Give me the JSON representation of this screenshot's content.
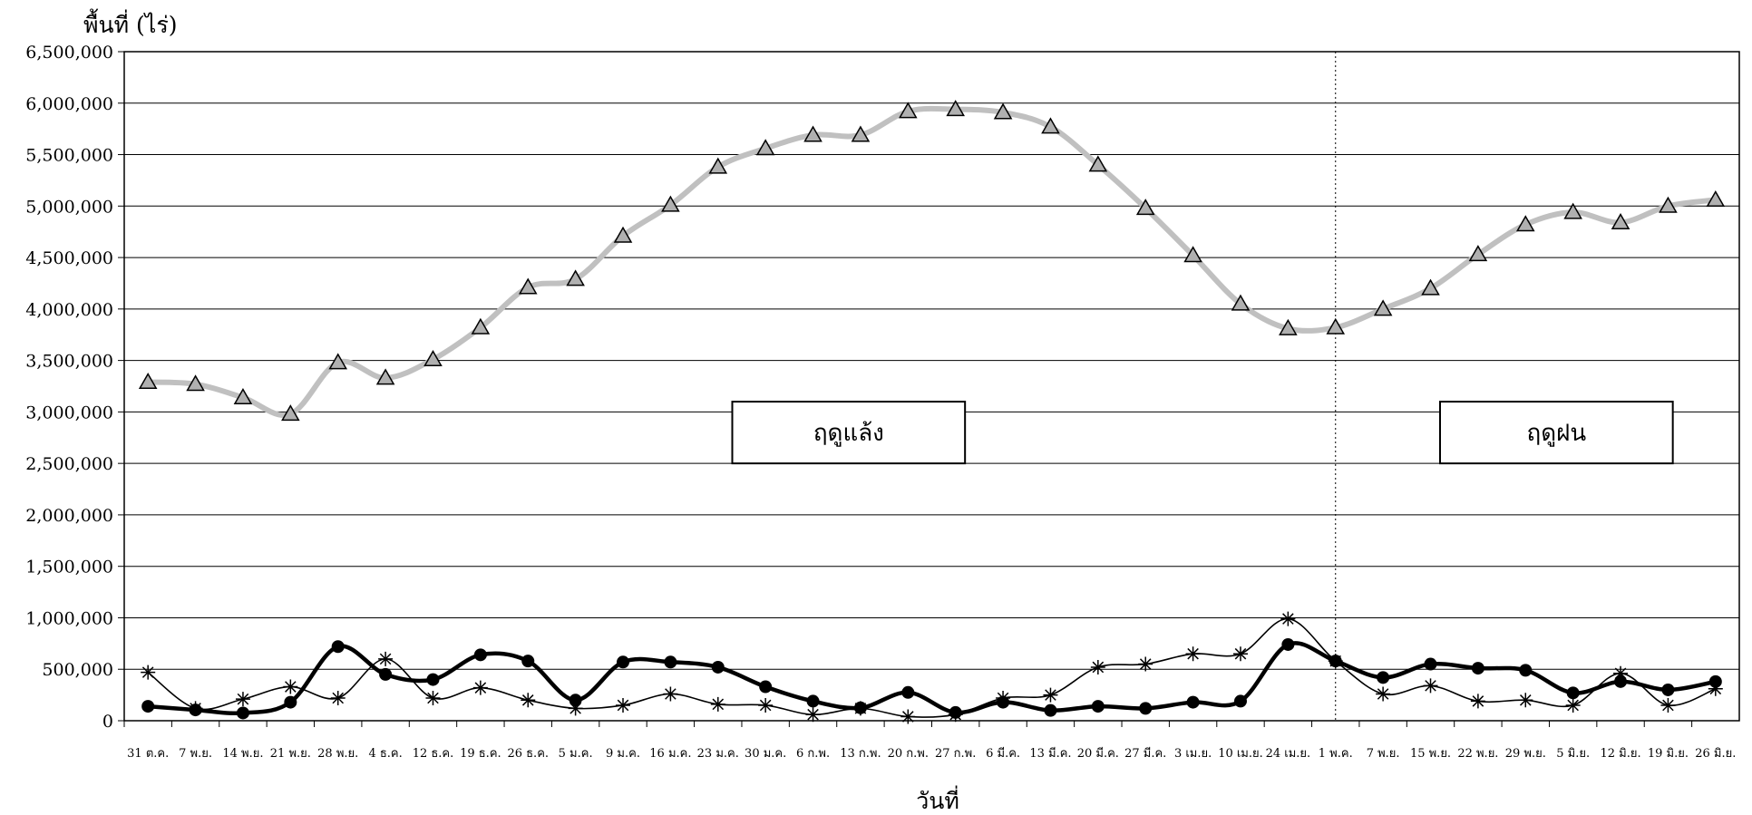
{
  "chart_data": {
    "type": "line",
    "title": "",
    "ylabel": "พื้นที่ (ไร่)",
    "xlabel": "วันที่",
    "ylim": [
      0,
      6500000
    ],
    "yticks": [
      "0",
      "500,000",
      "1,000,000",
      "1,500,000",
      "2,000,000",
      "2,500,000",
      "3,000,000",
      "3,500,000",
      "4,000,000",
      "4,500,000",
      "5,000,000",
      "5,500,000",
      "6,000,000",
      "6,500,000"
    ],
    "grid": true,
    "legend": "none",
    "categories": [
      "31 ต.ค.",
      "7 พ.ย.",
      "14 พ.ย.",
      "21 พ.ย.",
      "28 พ.ย.",
      "4 ธ.ค.",
      "12 ธ.ค.",
      "19 ธ.ค.",
      "26 ธ.ค.",
      "5 ม.ค.",
      "9 ม.ค.",
      "16 ม.ค.",
      "23 ม.ค.",
      "30 ม.ค.",
      "6 ก.พ.",
      "13 ก.พ.",
      "20 ก.พ.",
      "27 ก.พ.",
      "6 มี.ค.",
      "13 มี.ค.",
      "20 มี.ค.",
      "27 มี.ค.",
      "3 เม.ย.",
      "10 เม.ย.",
      "24 เม.ย.",
      "1 พ.ค.",
      "7 พ.ย.",
      "15 พ.ย.",
      "22 พ.ย.",
      "29 พ.ย.",
      "5 มิ.ย.",
      "12 มิ.ย.",
      "19 มิ.ย.",
      "26 มิ.ย."
    ],
    "series": [
      {
        "marker": "triangle",
        "color": "#c0c0c0",
        "values": [
          3290000,
          3270000,
          3140000,
          2980000,
          3480000,
          3330000,
          3510000,
          3820000,
          4210000,
          4290000,
          4710000,
          5010000,
          5380000,
          5560000,
          5690000,
          5690000,
          5920000,
          5940000,
          5910000,
          5770000,
          5400000,
          4980000,
          4520000,
          4050000,
          3810000,
          3820000,
          4000000,
          4200000,
          4530000,
          4820000,
          4940000,
          4840000,
          5000000,
          5060000
        ]
      },
      {
        "marker": "circle",
        "color": "#000000",
        "values": [
          140000,
          105000,
          75000,
          180000,
          720000,
          450000,
          400000,
          640000,
          580000,
          200000,
          570000,
          570000,
          520000,
          330000,
          190000,
          125000,
          275000,
          80000,
          180000,
          100000,
          140000,
          120000,
          180000,
          190000,
          740000,
          580000,
          420000,
          550000,
          510000,
          490000,
          270000,
          380000,
          300000,
          380000
        ]
      },
      {
        "marker": "star",
        "color": "#000000",
        "values": [
          470000,
          120000,
          210000,
          330000,
          220000,
          600000,
          220000,
          320000,
          200000,
          120000,
          150000,
          260000,
          160000,
          150000,
          60000,
          120000,
          40000,
          60000,
          220000,
          250000,
          520000,
          550000,
          650000,
          650000,
          990000,
          580000,
          260000,
          340000,
          190000,
          200000,
          150000,
          460000,
          150000,
          310000
        ]
      }
    ],
    "divider_after_category": "1 พ.ค.",
    "annotations": [
      {
        "text": "ฤดูแล้ง",
        "y_top": 3100000,
        "y_bottom": 2500000,
        "x_from": 12.3,
        "x_to": 17.2
      },
      {
        "text": "ฤดูฝน",
        "y_top": 3100000,
        "y_bottom": 2500000,
        "x_from": 27.2,
        "x_to": 32.1
      }
    ]
  }
}
